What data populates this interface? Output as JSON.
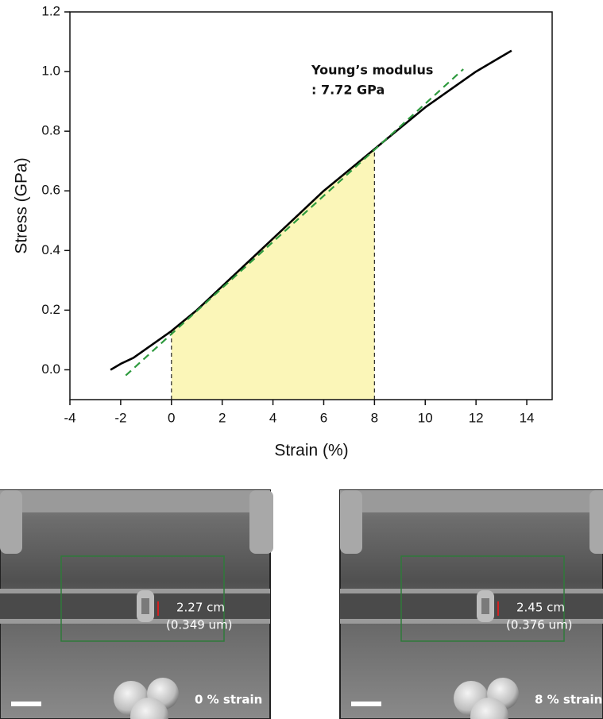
{
  "chart_data": {
    "type": "line",
    "x_label": "Strain (%)",
    "y_label": "Stress (GPa)",
    "xlim": [
      -4,
      15
    ],
    "ylim": [
      -0.1,
      1.2
    ],
    "xticks": [
      -4,
      -2,
      0,
      2,
      4,
      6,
      8,
      10,
      12,
      14
    ],
    "yticks": [
      {
        "value": 0,
        "label": "0.0"
      },
      {
        "value": 0.2,
        "label": "0.2"
      },
      {
        "value": 0.4,
        "label": "0.4"
      },
      {
        "value": 0.6,
        "label": "0.6"
      },
      {
        "value": 0.8,
        "label": "0.8"
      },
      {
        "value": 1,
        "label": "1.0"
      },
      {
        "value": 1.2,
        "label": "1.2"
      }
    ],
    "series": [
      {
        "color": "#000000",
        "style": "solid",
        "x": [
          -2.4,
          -2,
          -1.5,
          -1,
          -0.5,
          0,
          1,
          2,
          3,
          4,
          5,
          6,
          7,
          8,
          9,
          10,
          11,
          12,
          13,
          13.4
        ],
        "values": [
          0.0,
          0.02,
          0.04,
          0.07,
          0.1,
          0.13,
          0.2,
          0.28,
          0.36,
          0.44,
          0.52,
          0.6,
          0.67,
          0.74,
          0.81,
          0.88,
          0.94,
          1.0,
          1.05,
          1.07
        ]
      },
      {
        "color": "#2e9a3e",
        "style": "dashed",
        "x": [
          -1.8,
          11.5
        ],
        "values": [
          -0.019,
          1.008
        ]
      }
    ],
    "highlight_range": [
      0,
      8
    ],
    "highlight_color": "#fbf6b8",
    "annotation": [
      "Young’s modulus",
      ": 7.72 GPa"
    ]
  },
  "panels": [
    {
      "measure": "2.27 cm",
      "measure_um": "(0.349 um)",
      "label": "0 % strain"
    },
    {
      "measure": "2.45 cm",
      "measure_um": "(0.376 um)",
      "label": "8 % strain"
    }
  ]
}
